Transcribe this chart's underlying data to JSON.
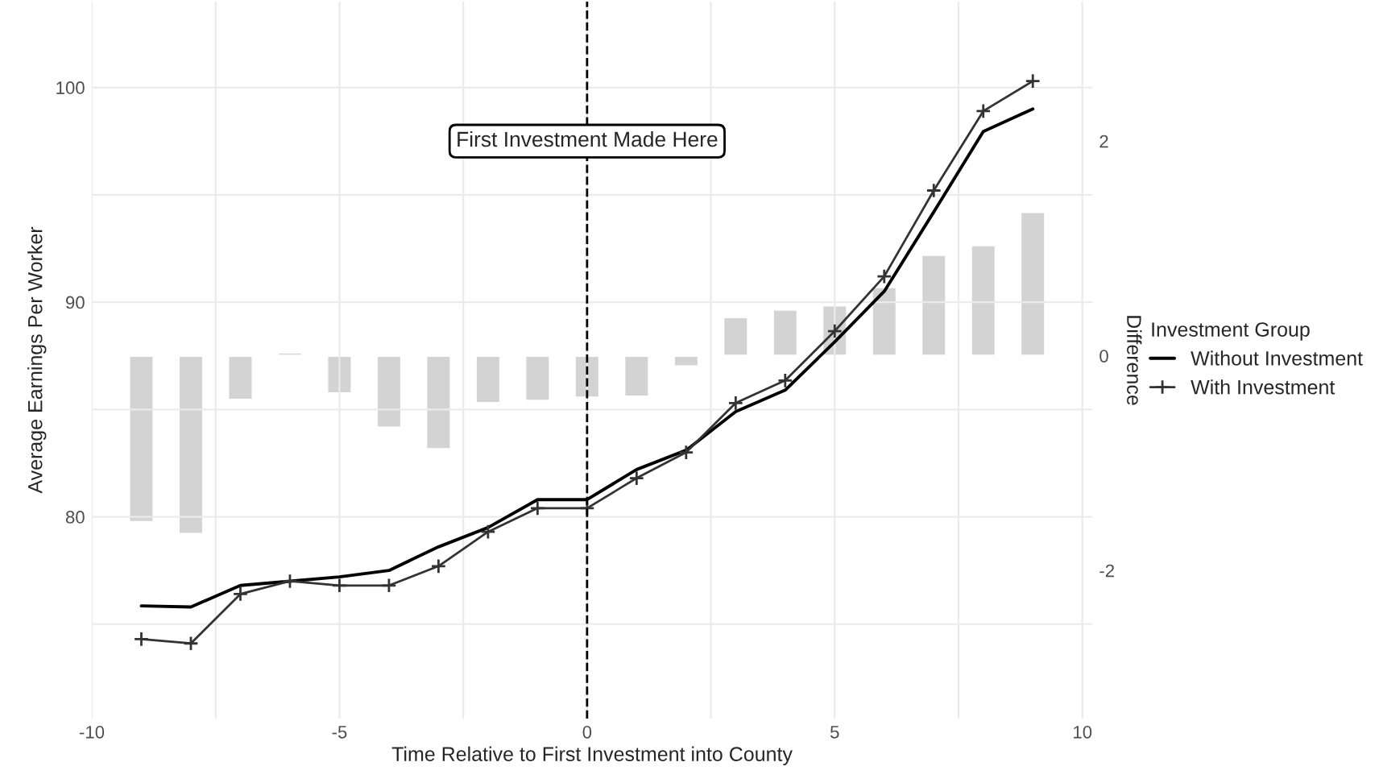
{
  "chart_data": {
    "type": "line",
    "xlabel": "Time Relative to First Investment into County",
    "ylabel": "Average Earnings Per Worker",
    "y2label": "Difference",
    "legend_title": "Investment Group",
    "x": [
      -9,
      -8,
      -7,
      -6,
      -5,
      -4,
      -3,
      -2,
      -1,
      0,
      1,
      2,
      3,
      4,
      5,
      6,
      7,
      8,
      9
    ],
    "series": [
      {
        "type": "bar",
        "axis": "y2",
        "color": "#d3d3d3",
        "values": [
          -1.55,
          -1.66,
          -0.41,
          0.03,
          -0.35,
          -0.67,
          -0.87,
          -0.44,
          -0.42,
          -0.39,
          -0.38,
          -0.1,
          0.36,
          0.43,
          0.47,
          0.64,
          0.94,
          1.03,
          1.34
        ]
      },
      {
        "name": "Without Investment",
        "color": "#000000",
        "marker": "none",
        "values": [
          75.85,
          75.8,
          76.8,
          77.0,
          77.2,
          77.5,
          78.6,
          79.5,
          80.8,
          80.8,
          82.2,
          83.1,
          84.9,
          85.9,
          88.15,
          90.5,
          94.2,
          97.95,
          99.0
        ]
      },
      {
        "name": "With Investment",
        "color": "#333333",
        "marker": "cross",
        "values": [
          74.3,
          74.1,
          76.4,
          77.0,
          76.8,
          76.8,
          77.7,
          79.3,
          80.4,
          80.4,
          81.8,
          83.0,
          85.3,
          86.35,
          88.65,
          91.2,
          95.2,
          98.9,
          100.3
        ]
      }
    ],
    "xlim": [
      -10,
      10.2
    ],
    "xticks": [
      -10,
      {
        "value": -7.5,
        "label": null
      },
      -5,
      {
        "value": -2.5,
        "label": null
      },
      0,
      {
        "value": 2.5,
        "label": null
      },
      5,
      {
        "value": 7.5,
        "label": null
      },
      10
    ],
    "ylim": [
      70.6,
      104
    ],
    "yticks": [
      {
        "value": 75,
        "label": null
      },
      80,
      {
        "value": 85,
        "label": null
      },
      90,
      {
        "value": 95,
        "label": null
      },
      100
    ],
    "y2lim": [
      -3.38,
      3.3
    ],
    "y2ticks": [
      -2,
      0,
      2
    ],
    "ref_lines": [
      {
        "axis": "x",
        "value": 0,
        "label": null,
        "color": "#000000",
        "line_style": "dashed"
      }
    ],
    "annotations": [
      {
        "text": "First Investment Made Here",
        "x": 0,
        "y": 97.5
      }
    ],
    "grid": true,
    "legend": "right"
  }
}
